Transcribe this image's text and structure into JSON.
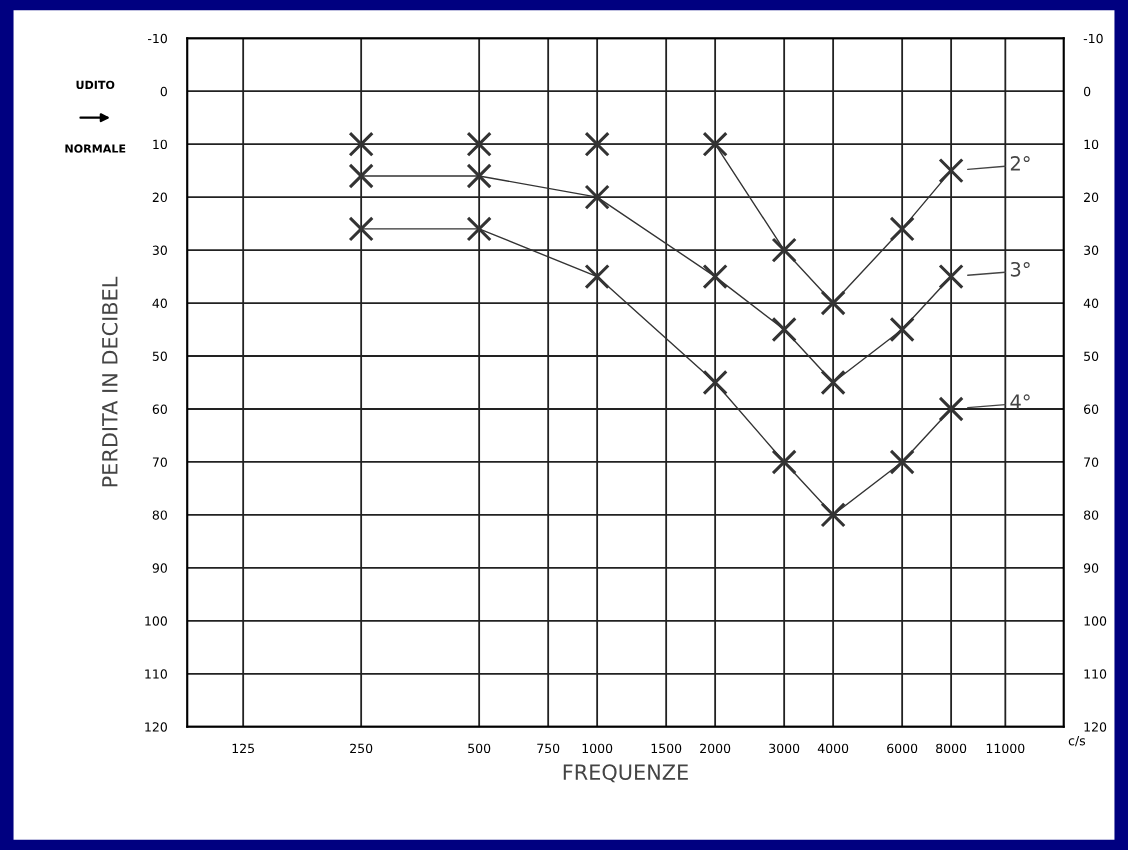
{
  "chart_data": {
    "type": "line",
    "xlabel": "FREQUENZE",
    "ylabel": "PERDITA IN DECIBEL",
    "log": "x",
    "xlim": [
      90,
      15500
    ],
    "xticks": [
      125,
      250,
      500,
      750,
      1000,
      1500,
      2000,
      3000,
      4000,
      6000,
      8000,
      11000
    ],
    "ylim": [
      120,
      -10
    ],
    "yticks": [
      -10,
      0,
      10,
      20,
      30,
      40,
      50,
      60,
      70,
      80,
      90,
      100,
      110,
      120
    ],
    "y2lim": [
      120,
      -10
    ],
    "y2ticks": [
      -10,
      0,
      10,
      20,
      30,
      40,
      50,
      60,
      70,
      80,
      90,
      100,
      110,
      120
    ],
    "grid": true,
    "marker": "cross",
    "line_style": "solid",
    "legend": false,
    "x": [
      250,
      500,
      1000,
      2000,
      3000,
      4000,
      6000,
      8000
    ],
    "series": [
      {
        "name": "2°",
        "color": "#333333",
        "values": [
          10,
          10,
          10,
          10,
          30,
          40,
          26,
          15
        ]
      },
      {
        "name": "3°",
        "color": "#333333",
        "values": [
          16,
          16,
          20,
          35,
          45,
          55,
          45,
          35
        ]
      },
      {
        "name": "4°",
        "color": "#333333",
        "values": [
          26,
          26,
          35,
          55,
          70,
          80,
          70,
          60
        ]
      }
    ],
    "annotations": [
      "UDITO NORMALE",
      "c/s"
    ]
  }
}
